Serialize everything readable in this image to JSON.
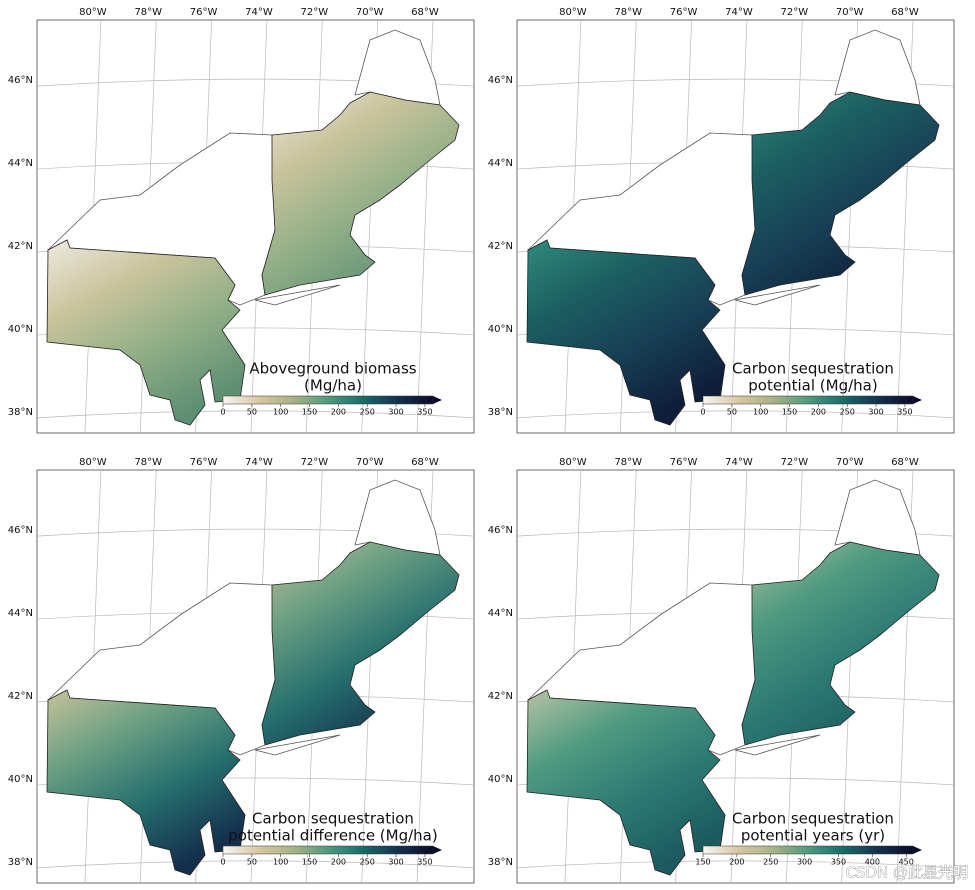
{
  "map": {
    "lonlim": [
      -82.02,
      -66.23
    ],
    "latlim": [
      37.49,
      47.45
    ],
    "colormap": [
      "#f7f5f2",
      "#d9c7a4",
      "#a9b383",
      "#4f9a80",
      "#1a6b6b",
      "#14314f",
      "#0b0b2a"
    ],
    "panels": [
      {
        "title": [
          "Aboveground biomass",
          "(Mg/ha)"
        ],
        "cbar_lim": [
          0,
          364
        ],
        "cbar_ticks": [
          0,
          50,
          100,
          150,
          200,
          250,
          300,
          350
        ],
        "lon_ticks": [
          {
            "value": -80,
            "label": "80°W"
          },
          {
            "value": -78,
            "label": "78°W"
          },
          {
            "value": -76,
            "label": "76°W"
          },
          {
            "value": -74,
            "label": "74°W"
          },
          {
            "value": -72,
            "label": "72°W"
          },
          {
            "value": -70,
            "label": "70°W"
          },
          {
            "value": -68,
            "label": "68°W"
          }
        ],
        "lat_ticks": [
          {
            "value": 46,
            "label": "46°N"
          },
          {
            "value": 44,
            "label": "44°N"
          },
          {
            "value": 42,
            "label": "42°N"
          },
          {
            "value": 40,
            "label": "40°N"
          },
          {
            "value": 38,
            "label": "38°N"
          }
        ]
      },
      {
        "title": [
          "Carbon sequestration",
          "potential (Mg/ha)"
        ],
        "cbar_lim": [
          0,
          364
        ],
        "cbar_ticks": [
          0,
          50,
          100,
          150,
          200,
          250,
          300,
          350
        ],
        "lon_ticks": [
          {
            "value": -80,
            "label": "80°W"
          },
          {
            "value": -78,
            "label": "78°W"
          },
          {
            "value": -76,
            "label": "76°W"
          },
          {
            "value": -74,
            "label": "74°W"
          },
          {
            "value": -72,
            "label": "72°W"
          },
          {
            "value": -70,
            "label": "70°W"
          },
          {
            "value": -68,
            "label": "68°W"
          }
        ],
        "lat_ticks": [
          {
            "value": 46,
            "label": "46°N"
          },
          {
            "value": 44,
            "label": "44°N"
          },
          {
            "value": 42,
            "label": "42°N"
          },
          {
            "value": 40,
            "label": "40°N"
          },
          {
            "value": 38,
            "label": "38°N"
          }
        ]
      },
      {
        "title": [
          "Carbon sequestration",
          "potential difference (Mg/ha)"
        ],
        "cbar_lim": [
          0,
          364
        ],
        "cbar_ticks": [
          0,
          50,
          100,
          150,
          200,
          250,
          300,
          350
        ],
        "lon_ticks": [
          {
            "value": -80,
            "label": "80°W"
          },
          {
            "value": -78,
            "label": "78°W"
          },
          {
            "value": -76,
            "label": "76°W"
          },
          {
            "value": -74,
            "label": "74°W"
          },
          {
            "value": -72,
            "label": "72°W"
          },
          {
            "value": -70,
            "label": "70°W"
          },
          {
            "value": -68,
            "label": "68°W"
          }
        ],
        "lat_ticks": [
          {
            "value": 46,
            "label": "46°N"
          },
          {
            "value": 44,
            "label": "44°N"
          },
          {
            "value": 42,
            "label": "42°N"
          },
          {
            "value": 40,
            "label": "40°N"
          },
          {
            "value": 38,
            "label": "38°N"
          }
        ]
      },
      {
        "title": [
          "Carbon sequestration",
          "potential years (yr)"
        ],
        "cbar_lim": [
          150,
          460
        ],
        "cbar_ticks": [
          150,
          200,
          250,
          300,
          350,
          400,
          450
        ],
        "lon_ticks": [
          {
            "value": -80,
            "label": "80°W"
          },
          {
            "value": -78,
            "label": "78°W"
          },
          {
            "value": -76,
            "label": "76°W"
          },
          {
            "value": -74,
            "label": "74°W"
          },
          {
            "value": -72,
            "label": "72°W"
          },
          {
            "value": -70,
            "label": "70°W"
          },
          {
            "value": -68,
            "label": "68°W"
          }
        ],
        "lat_ticks": [
          {
            "value": 46,
            "label": "46°N"
          },
          {
            "value": 44,
            "label": "44°N"
          },
          {
            "value": 42,
            "label": "42°N"
          },
          {
            "value": 40,
            "label": "40°N"
          },
          {
            "value": 38,
            "label": "38°N"
          }
        ]
      }
    ]
  },
  "watermark": "CSDN @此星光明"
}
